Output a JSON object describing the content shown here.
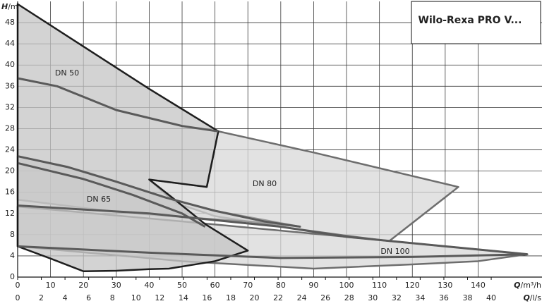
{
  "chart_data": {
    "type": "region",
    "title": "Wilo-Rexa PRO V...",
    "y_label": "H",
    "y_unit": "/m",
    "x_label": "Q",
    "x_unit": "/m³/h",
    "x2_label": "Q",
    "x2_unit": "/l/s",
    "xlim": [
      0,
      159
    ],
    "xticks": [
      0,
      10,
      20,
      30,
      40,
      50,
      60,
      70,
      80,
      90,
      100,
      110,
      120,
      130,
      140
    ],
    "x2lim": [
      0,
      44.17
    ],
    "x2ticks": [
      0,
      2,
      4,
      6,
      8,
      10,
      12,
      14,
      16,
      18,
      20,
      22,
      24,
      26,
      28,
      30,
      32,
      34,
      36,
      38,
      40
    ],
    "ylim": [
      0,
      52
    ],
    "yticks": [
      0,
      4,
      8,
      12,
      16,
      20,
      24,
      28,
      32,
      36,
      40,
      44,
      48
    ],
    "grid": true,
    "series": [
      {
        "name": "DN 100",
        "color": "#6e6e6e",
        "fill": "#d8d8d8",
        "x": [
          0,
          50,
          100,
          155,
          140,
          120,
          90,
          50,
          0
        ],
        "values": [
          13.3,
          10.5,
          7.6,
          4.3,
          3,
          2.4,
          1.6,
          3,
          5.8
        ]
      },
      {
        "name": "DN 80",
        "color": "#6e6e6e",
        "fill": "#d8d8d8",
        "x": [
          61,
          90,
          134,
          113,
          100,
          80,
          60,
          48,
          40,
          57.5,
          61
        ],
        "values": [
          27.5,
          23.5,
          17,
          6.8,
          7.8,
          9.5,
          11.5,
          14,
          18.4,
          17,
          27.5
        ]
      },
      {
        "name": "DN 65",
        "color": "#9a9a9a",
        "fill": "#d4d4d4",
        "x": [
          0,
          20,
          45,
          60,
          86,
          70,
          50,
          40,
          30,
          0
        ],
        "values": [
          22.8,
          20,
          15,
          12.5,
          9.5,
          10.5,
          11.3,
          11.8,
          12.3,
          14.6
        ]
      },
      {
        "name": "DN 50",
        "color": "#1e1e1e",
        "fill": "#c4c4c4",
        "x": [
          0,
          20,
          40,
          61,
          57.5,
          40,
          47,
          57,
          70,
          60,
          46,
          40,
          30,
          20,
          10,
          0
        ],
        "values": [
          51.5,
          43.5,
          35.5,
          27.5,
          17,
          18.4,
          15,
          10,
          5,
          3,
          1.6,
          1.5,
          1.2,
          1.1,
          3.5,
          5.8
        ]
      }
    ],
    "curves": [
      {
        "color": "#5a5a5a",
        "x": [
          0,
          12,
          30,
          50,
          61
        ],
        "values": [
          37.5,
          36,
          31.5,
          28.5,
          27.5
        ]
      },
      {
        "color": "#5a5a5a",
        "x": [
          0,
          15,
          30,
          45,
          60,
          75,
          86
        ],
        "values": [
          22.8,
          20.8,
          18,
          15,
          12.5,
          10.5,
          9.5
        ]
      },
      {
        "color": "#5a5a5a",
        "x": [
          0,
          20,
          35,
          50,
          57
        ],
        "values": [
          21.5,
          18.5,
          15.5,
          12,
          9.5
        ]
      },
      {
        "color": "#5a5a5a",
        "x": [
          0,
          40,
          80,
          100,
          155
        ],
        "values": [
          13.5,
          12,
          9.5,
          7.6,
          4.3
        ]
      },
      {
        "color": "#5a5a5a",
        "x": [
          0,
          40,
          80,
          120,
          155
        ],
        "values": [
          5.8,
          4.6,
          3.6,
          3.8,
          4.3
        ]
      }
    ]
  }
}
